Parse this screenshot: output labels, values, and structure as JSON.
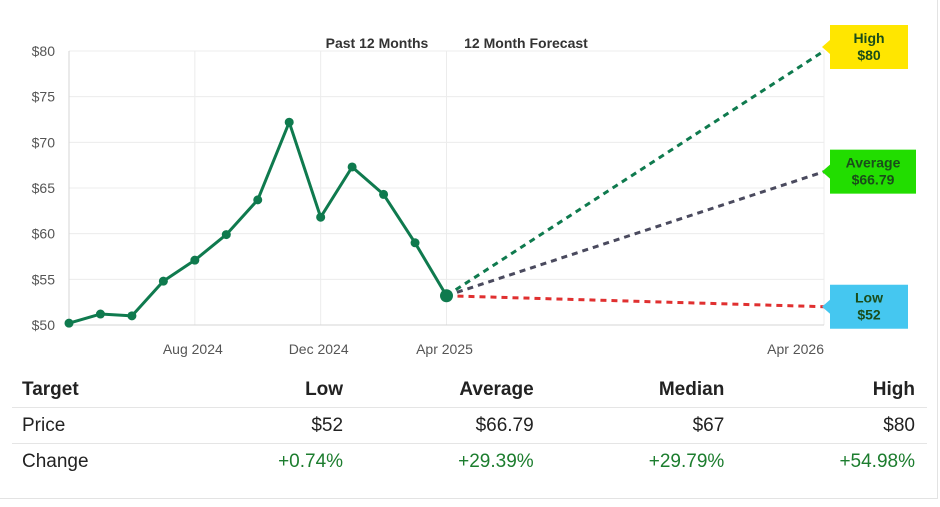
{
  "chart_data": {
    "type": "line",
    "header_labels": [
      "Past 12 Months",
      "12 Month Forecast"
    ],
    "y_ticks": [
      "$80",
      "$75",
      "$70",
      "$65",
      "$60",
      "$55",
      "$50"
    ],
    "y_tick_values": [
      80,
      75,
      70,
      65,
      60,
      55,
      50
    ],
    "ylim": [
      50,
      80
    ],
    "x_ticks": [
      "Aug 2024",
      "Dec 2024",
      "Apr 2025",
      "Apr 2026"
    ],
    "x_tick_months": [
      2,
      6,
      10,
      22
    ],
    "xlim": [
      -2,
      22
    ],
    "grid": true,
    "past": {
      "months": [
        -2,
        -1,
        0,
        1,
        2,
        3,
        4,
        5,
        6,
        7,
        8,
        9,
        10
      ],
      "values": [
        50.2,
        51.2,
        51.0,
        54.8,
        57.1,
        59.9,
        63.7,
        72.2,
        61.8,
        67.3,
        64.3,
        59.0,
        53.2
      ]
    },
    "forecast": [
      {
        "label": "High",
        "value_label": "$80",
        "value": 80,
        "start_value": 53.2,
        "line_color": "#0f7a4e",
        "box_color": "#ffe600"
      },
      {
        "label": "Average",
        "value_label": "$66.79",
        "value": 66.79,
        "start_value": 53.2,
        "line_color": "#4a4a5e",
        "box_color": "#22dd00"
      },
      {
        "label": "Low",
        "value_label": "$52",
        "value": 52,
        "start_value": 53.2,
        "line_color": "#e03030",
        "box_color": "#45c7f0"
      }
    ],
    "line_color": "#0f7a4e"
  },
  "table": {
    "headers": [
      "Target",
      "Low",
      "Average",
      "Median",
      "High"
    ],
    "rows": [
      [
        "Price",
        "$52",
        "$66.79",
        "$67",
        "$80"
      ],
      [
        "Change",
        "+0.74%",
        "+29.39%",
        "+29.79%",
        "+54.98%"
      ]
    ]
  }
}
